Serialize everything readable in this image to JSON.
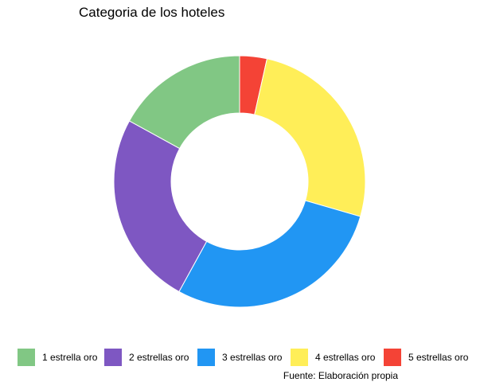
{
  "chart_data": {
    "type": "pie",
    "variant": "donut",
    "title": "Categoria de los hoteles",
    "caption": "Fuente: Elaboración propia",
    "legend_position": "bottom",
    "start": "top",
    "direction": "clockwise",
    "categories": [
      "5 estrellas oro",
      "4 estrellas oro",
      "3 estrellas oro",
      "2 estrellas oro",
      "1 estrella oro"
    ],
    "values": [
      3.5,
      26.0,
      28.5,
      25.0,
      17.0
    ],
    "colors": [
      "#f44336",
      "#ffee58",
      "#2196f3",
      "#7e57c2",
      "#81c784"
    ],
    "legend": [
      {
        "label": "1 estrella oro",
        "color": "#81c784"
      },
      {
        "label": "2 estrellas oro",
        "color": "#7e57c2"
      },
      {
        "label": "3 estrellas oro",
        "color": "#2196f3"
      },
      {
        "label": "4 estrellas oro",
        "color": "#ffee58"
      },
      {
        "label": "5 estrellas oro",
        "color": "#f44336"
      }
    ]
  }
}
